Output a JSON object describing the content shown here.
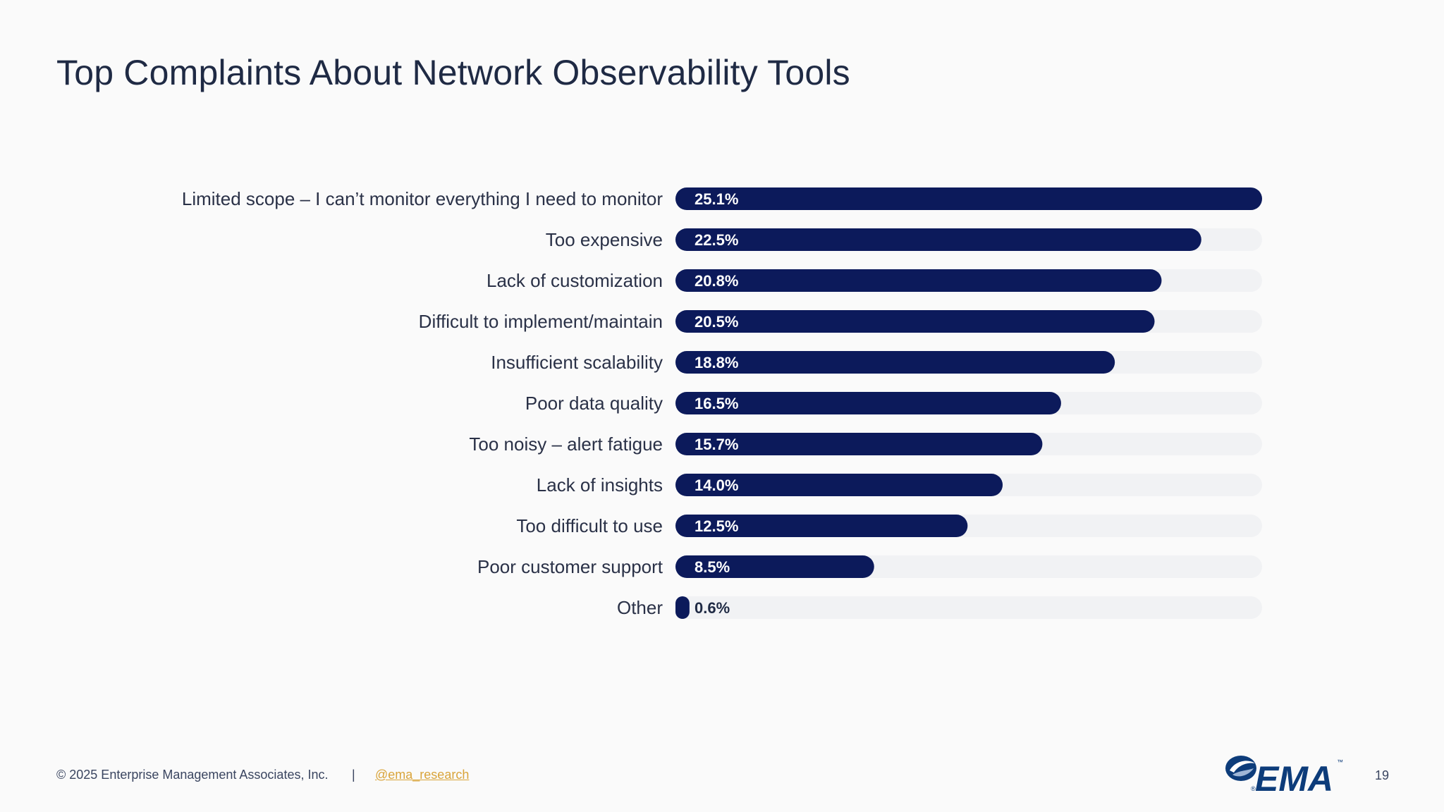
{
  "page": {
    "title": "Top Complaints About Network Observability Tools",
    "page_number": "19"
  },
  "footer": {
    "copyright": "© 2025 Enterprise Management Associates, Inc.",
    "separator": "|",
    "handle": "@ema_research"
  },
  "logo": {
    "text": "EMA",
    "trademark": "™",
    "registered": "®"
  },
  "colors": {
    "bar": "#0c1a5b",
    "track": "#f1f2f4",
    "bar_label": "#ffffff",
    "outside_label": "#1f2a44",
    "category_label": "#2a3147",
    "logo_blue": "#0d3c7a"
  },
  "chart_data": {
    "type": "bar",
    "orientation": "horizontal",
    "title": "Top Complaints About Network Observability Tools",
    "categories": [
      "Limited scope – I can’t monitor everything I need to monitor",
      "Too expensive",
      "Lack of customization",
      "Difficult to implement/maintain",
      "Insufficient scalability",
      "Poor data quality",
      "Too noisy – alert fatigue",
      "Lack of insights",
      "Too difficult to use",
      "Poor customer support",
      "Other"
    ],
    "values": [
      25.1,
      22.5,
      20.8,
      20.5,
      18.8,
      16.5,
      15.7,
      14.0,
      12.5,
      8.5,
      0.6
    ],
    "value_labels": [
      "25.1%",
      "22.5%",
      "20.8%",
      "20.5%",
      "18.8%",
      "16.5%",
      "15.7%",
      "14.0%",
      "12.5%",
      "8.5%",
      "0.6%"
    ],
    "xlim": [
      0,
      25.1
    ],
    "grid": false,
    "legend": "none"
  }
}
